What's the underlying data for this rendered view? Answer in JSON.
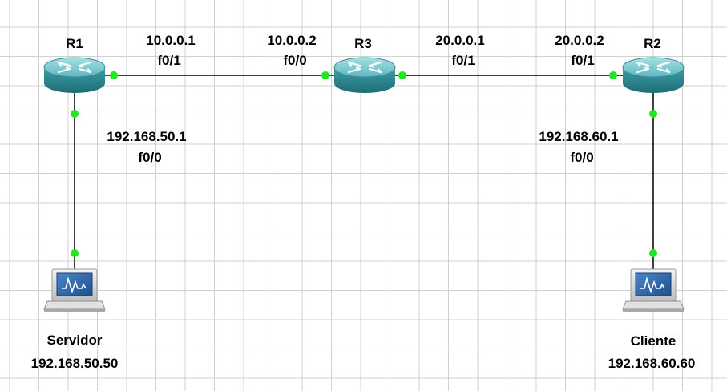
{
  "routers": {
    "r1": {
      "name": "R1"
    },
    "r2": {
      "name": "R2"
    },
    "r3": {
      "name": "R3"
    }
  },
  "hosts": {
    "servidor": {
      "name": "Servidor",
      "ip": "192.168.50.50"
    },
    "cliente": {
      "name": "Cliente",
      "ip": "192.168.60.60"
    }
  },
  "interfaces": {
    "r1_f01": {
      "ip": "10.0.0.1",
      "port": "f0/1"
    },
    "r3_f00": {
      "ip": "10.0.0.2",
      "port": "f0/0"
    },
    "r3_f01": {
      "ip": "20.0.0.1",
      "port": "f0/1"
    },
    "r2_f01": {
      "ip": "20.0.0.2",
      "port": "f0/1"
    },
    "r1_f00": {
      "ip": "192.168.50.1",
      "port": "f0/0"
    },
    "r2_f00": {
      "ip": "192.168.60.1",
      "port": "f0/0"
    }
  },
  "colors": {
    "link": "#000000",
    "link_status_up": "#22e622",
    "router_body": "#2e8f99",
    "router_top": "#7fcdd3",
    "pc_screen": "#2c64a8"
  }
}
